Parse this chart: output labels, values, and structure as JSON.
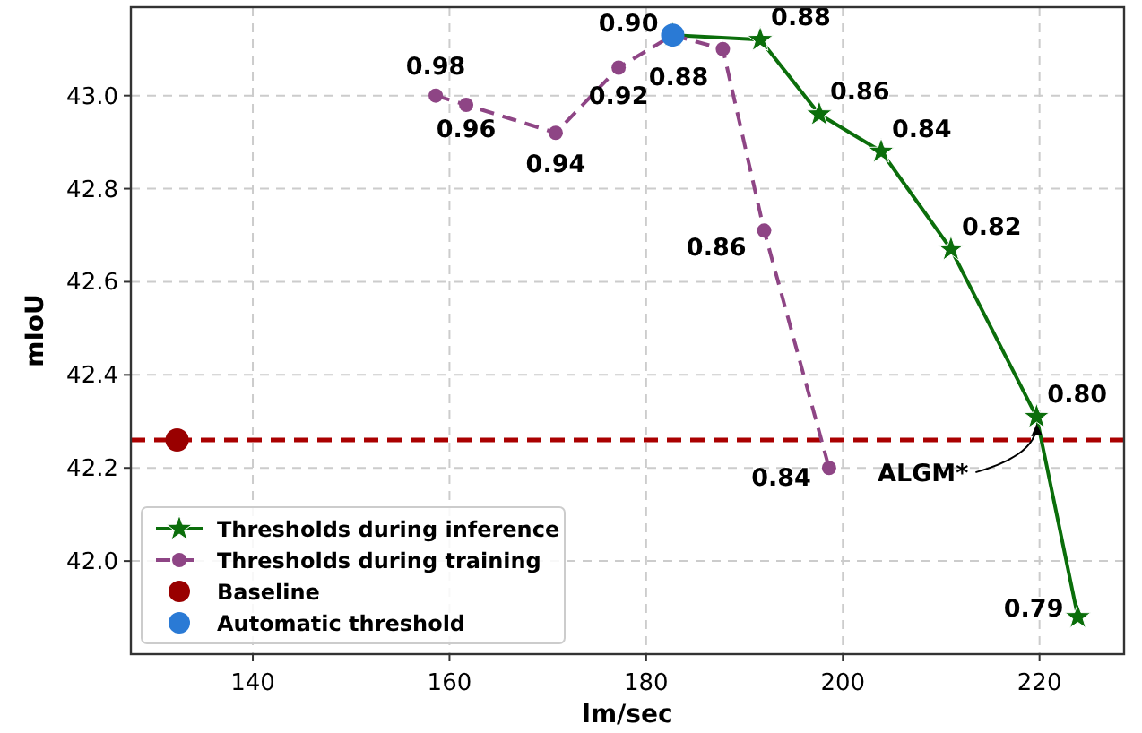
{
  "chart_data": {
    "type": "line",
    "xlabel": "lm/sec",
    "ylabel": "mIoU",
    "xlim": [
      127.6,
      228.6
    ],
    "ylim": [
      41.8,
      43.19
    ],
    "xticks": [
      140,
      160,
      180,
      200,
      220
    ],
    "yticks": [
      {
        "value": 42.0,
        "label": "42.0"
      },
      {
        "value": 42.2,
        "label": "42.2"
      },
      {
        "value": 42.4,
        "label": "42.4"
      },
      {
        "value": 42.6,
        "label": "42.6"
      },
      {
        "value": 42.8,
        "label": "42.8"
      },
      {
        "value": 43.0,
        "label": "43.0"
      }
    ],
    "grid": true,
    "legend": "bottom left",
    "series": [
      {
        "name": "Thresholds during inference",
        "color": "#0b6e0b",
        "marker": "star",
        "line_style": "solid",
        "x": [
          182.7,
          191.6,
          197.6,
          203.9,
          211.0,
          219.7,
          223.9
        ],
        "values": [
          43.13,
          43.12,
          42.96,
          42.88,
          42.67,
          42.31,
          41.88
        ]
      },
      {
        "name": "Thresholds during training",
        "color": "#8e4585",
        "marker": "circle",
        "line_style": "dashed",
        "x": [
          158.6,
          161.7,
          170.8,
          177.2,
          182.7,
          187.8,
          192.0,
          198.6
        ],
        "values": [
          43.0,
          42.98,
          42.92,
          43.06,
          43.13,
          43.1,
          42.71,
          42.2
        ]
      },
      {
        "name": "Baseline",
        "type": "scatter",
        "color": "#990000",
        "marker": "circle",
        "x": [
          132.3
        ],
        "values": [
          42.26
        ]
      },
      {
        "name": "Automatic threshold",
        "type": "scatter",
        "color": "#2a7ad5",
        "marker": "circle",
        "x": [
          182.7
        ],
        "values": [
          43.13
        ]
      }
    ],
    "ref_lines": [
      {
        "axis": "y",
        "value": 42.26,
        "color": "#aa0000",
        "line_style": "dashed"
      }
    ],
    "annotations": [
      {
        "text": "0.88",
        "x": 191.6,
        "y": 43.12
      },
      {
        "text": "0.86",
        "x": 197.6,
        "y": 42.96
      },
      {
        "text": "0.84",
        "x": 203.9,
        "y": 42.88
      },
      {
        "text": "0.82",
        "x": 211.0,
        "y": 42.67
      },
      {
        "text": "0.80",
        "x": 219.7,
        "y": 42.31
      },
      {
        "text": "0.79",
        "x": 223.9,
        "y": 41.88
      },
      {
        "text": "0.98",
        "x": 158.6,
        "y": 43.0
      },
      {
        "text": "0.96",
        "x": 161.7,
        "y": 42.98
      },
      {
        "text": "0.94",
        "x": 170.8,
        "y": 42.92
      },
      {
        "text": "0.92",
        "x": 177.2,
        "y": 43.06
      },
      {
        "text": "0.90",
        "x": 182.7,
        "y": 43.13
      },
      {
        "text": "0.88",
        "x": 187.8,
        "y": 43.1
      },
      {
        "text": "0.86",
        "x": 192.0,
        "y": 42.71
      },
      {
        "text": "0.84",
        "x": 198.6,
        "y": 42.2
      },
      {
        "text": "ALGM*",
        "x": 219.7,
        "y": 42.31
      }
    ]
  }
}
